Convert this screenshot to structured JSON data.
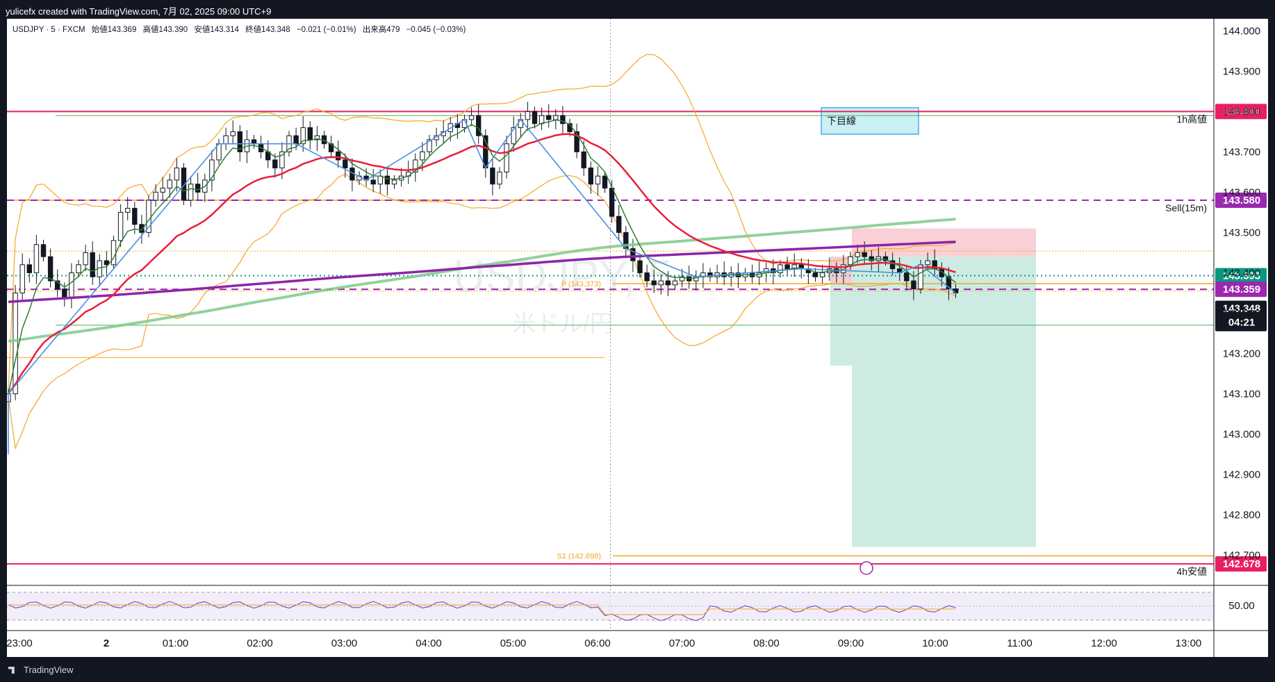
{
  "header": {
    "caption": "yulicefx created with TradingView.com, 7月 02, 2025 09:00 UTC+9"
  },
  "footer": {
    "brand": "TradingView"
  },
  "legend": {
    "symbol": "USDJPY · 5 · FXCM",
    "open": "始値143.369",
    "high": "高値143.390",
    "low": "安値143.314",
    "close": "終値143.348",
    "change": "−0.021 (−0.01%)",
    "volume": "出来高479",
    "vchange": "−0.045 (−0.03%)"
  },
  "watermark": {
    "symbol": "USDJPY, 5",
    "name": "米ドル/円"
  },
  "chart_data": {
    "type": "candlestick",
    "x_ticks": [
      "23:00",
      "2",
      "01:00",
      "02:00",
      "03:00",
      "04:00",
      "05:00",
      "06:00",
      "07:00",
      "08:00",
      "09:00",
      "10:00",
      "11:00",
      "12:00",
      "13:00"
    ],
    "y_range": [
      142.63,
      144.03
    ],
    "y_ticks": [
      "144.000",
      "143.900",
      "143.800",
      "143.700",
      "143.600",
      "143.500",
      "143.400",
      "143.300",
      "143.200",
      "143.100",
      "143.000",
      "142.900",
      "142.800",
      "142.700"
    ],
    "colors": {
      "ma_red": "#e91e3a",
      "ma_green": "#7fc98b",
      "ma_purple": "#8e24aa",
      "zigzag": "#4a90e2",
      "bollinger": "#f5a623",
      "up": "#ffffff",
      "down": "#131722",
      "level_pink": "#e91e63",
      "level_purple": "#9c27b0"
    },
    "candles_close": [
      143.1,
      143.35,
      143.42,
      143.4,
      143.47,
      143.44,
      143.38,
      143.36,
      143.34,
      143.4,
      143.42,
      143.45,
      143.39,
      143.43,
      143.42,
      143.48,
      143.55,
      143.56,
      143.52,
      143.5,
      143.58,
      143.6,
      143.61,
      143.63,
      143.66,
      143.58,
      143.62,
      143.6,
      143.63,
      143.68,
      143.72,
      143.74,
      143.75,
      143.7,
      143.73,
      143.72,
      143.7,
      143.68,
      143.66,
      143.7,
      143.74,
      143.72,
      143.76,
      143.73,
      143.74,
      143.72,
      143.7,
      143.68,
      143.66,
      143.63,
      143.64,
      143.63,
      143.62,
      143.64,
      143.62,
      143.63,
      143.64,
      143.65,
      143.68,
      143.7,
      143.73,
      143.74,
      143.75,
      143.77,
      143.76,
      143.78,
      143.79,
      143.74,
      143.66,
      143.62,
      143.65,
      143.72,
      143.76,
      143.78,
      143.8,
      143.77,
      143.79,
      143.78,
      143.79,
      143.77,
      143.75,
      143.7,
      143.66,
      143.62,
      143.64,
      143.61,
      143.54,
      143.5,
      143.46,
      143.43,
      143.4,
      143.38,
      143.37,
      143.38,
      143.37,
      143.38,
      143.39,
      143.38,
      143.39,
      143.4,
      143.39,
      143.4,
      143.39,
      143.4,
      143.39,
      143.4,
      143.39,
      143.4,
      143.41,
      143.4,
      143.42,
      143.41,
      143.42,
      143.41,
      143.4,
      143.39,
      143.4,
      143.41,
      143.4,
      143.42,
      143.44,
      143.45,
      143.44,
      143.43,
      143.44,
      143.43,
      143.41,
      143.4,
      143.38,
      143.36,
      143.42,
      143.43,
      143.41,
      143.39,
      143.36,
      143.35
    ],
    "pivots": [
      {
        "label": "P (143.373)",
        "value": 143.373
      },
      {
        "label": "S1 (142.698)",
        "value": 142.698
      }
    ],
    "levels": [
      {
        "value": 143.8,
        "label": "143.800",
        "note": "1h高値",
        "color": "#e91e63"
      },
      {
        "value": 143.58,
        "label": "143.580",
        "note": "Sell(15m)",
        "color": "#9c27b0"
      },
      {
        "value": 143.393,
        "label": "143.393",
        "note": "",
        "color": "#089981"
      },
      {
        "value": 143.359,
        "label": "143.359",
        "note": "",
        "color": "#9c27b0"
      },
      {
        "value": 142.678,
        "label": "142.678",
        "note": "4h安値",
        "color": "#e91e63"
      }
    ],
    "last_price": {
      "value": "143.348",
      "countdown": "04:21"
    },
    "annotation_box": "下目線",
    "oscillator": {
      "level_label": "50.00"
    }
  }
}
